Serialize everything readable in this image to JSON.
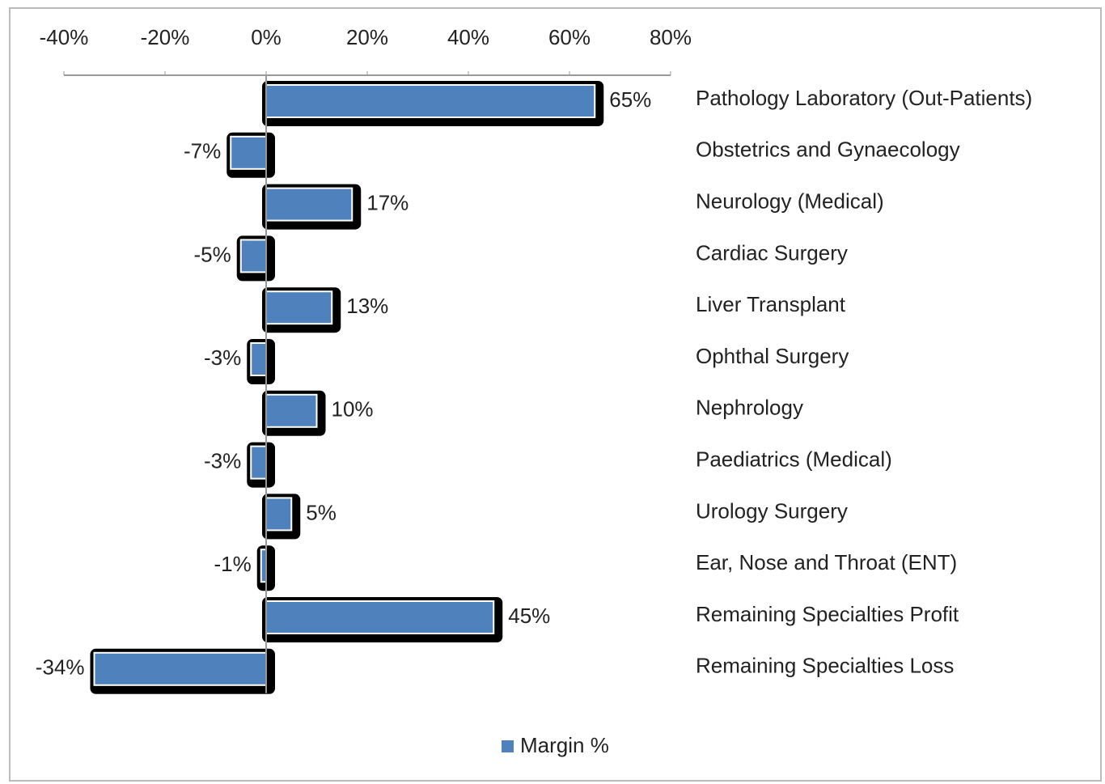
{
  "chart_data": {
    "type": "barh",
    "categories": [
      "Pathology Laboratory (Out-Patients)",
      "Obstetrics and Gynaecology",
      "Neurology (Medical)",
      "Cardiac Surgery",
      "Liver Transplant",
      "Ophthal Surgery",
      "Nephrology",
      "Paediatrics (Medical)",
      "Urology Surgery",
      "Ear, Nose and Throat (ENT)",
      "Remaining Specialties Profit",
      "Remaining Specialties Loss"
    ],
    "series": [
      {
        "name": "Margin %",
        "color": "#4f81bd",
        "values": [
          65,
          -7,
          17,
          -5,
          13,
          -3,
          10,
          -3,
          5,
          -1,
          45,
          -34
        ],
        "value_labels": [
          "65%",
          "-7%",
          "17%",
          "-5%",
          "13%",
          "-3%",
          "10%",
          "-3%",
          "5%",
          "-1%",
          "45%",
          "-34%"
        ]
      }
    ],
    "xlim": [
      -40,
      80
    ],
    "xticks": [
      {
        "value": -40,
        "label": "-40%"
      },
      {
        "value": -20,
        "label": "-20%"
      },
      {
        "value": 0,
        "label": "0%"
      },
      {
        "value": 20,
        "label": "20%"
      },
      {
        "value": 40,
        "label": "40%"
      },
      {
        "value": 60,
        "label": "60%"
      },
      {
        "value": 80,
        "label": "80%"
      }
    ],
    "legend": "bottom"
  }
}
